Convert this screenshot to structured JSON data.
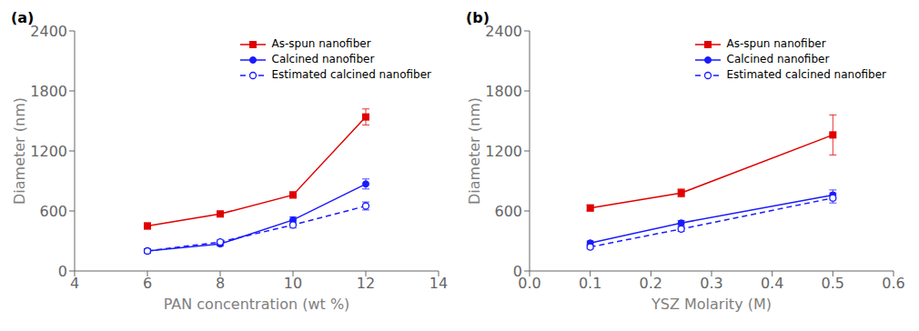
{
  "chart_data": [
    {
      "type": "line",
      "annotations": [
        "(a)"
      ],
      "xlabel": "PAN concentration (wt %)",
      "ylabel": "Diameter (nm)",
      "x": [
        6,
        8,
        10,
        12
      ],
      "xlim": [
        4,
        14
      ],
      "xticks": [
        4,
        6,
        8,
        10,
        12,
        14
      ],
      "ylim": [
        0,
        2400
      ],
      "yticks": [
        0,
        600,
        1200,
        1800,
        2400
      ],
      "legend": "upper right",
      "grid": false,
      "series": [
        {
          "name": "As-spun nanofiber",
          "color": "#e00000",
          "marker": "square",
          "line_style": "solid",
          "values": [
            450,
            570,
            760,
            1540
          ],
          "errors": [
            30,
            25,
            30,
            80
          ]
        },
        {
          "name": "Calcined nanofiber",
          "color": "#1a1aff",
          "marker": "circle",
          "line_style": "solid",
          "values": [
            200,
            270,
            510,
            870
          ],
          "errors": [
            20,
            20,
            30,
            50
          ]
        },
        {
          "name": "Estimated calcined nanofiber",
          "color": "#1a1aff",
          "marker": "open_circle",
          "line_style": "dashed",
          "values": [
            200,
            290,
            460,
            650
          ],
          "errors": [
            20,
            20,
            30,
            40
          ]
        }
      ]
    },
    {
      "type": "line",
      "annotations": [
        "(b)"
      ],
      "xlabel": "YSZ Molarity (M)",
      "ylabel": "Diameter (nm)",
      "x": [
        0.1,
        0.25,
        0.5
      ],
      "xlim": [
        0.0,
        0.6
      ],
      "xticks": [
        {
          "value": 0.0,
          "label": "0.0"
        },
        0.1,
        0.2,
        0.3,
        0.4,
        0.5,
        0.6
      ],
      "ylim": [
        0,
        2400
      ],
      "yticks": [
        0,
        600,
        1200,
        1800,
        2400
      ],
      "legend": "upper right",
      "grid": false,
      "series": [
        {
          "name": "As-spun nanofiber",
          "color": "#e00000",
          "marker": "square",
          "line_style": "solid",
          "values": [
            630,
            780,
            1360
          ],
          "errors": [
            30,
            40,
            200
          ]
        },
        {
          "name": "Calcined nanofiber",
          "color": "#1a1aff",
          "marker": "circle",
          "line_style": "solid",
          "values": [
            280,
            480,
            760
          ],
          "errors": [
            20,
            25,
            50
          ]
        },
        {
          "name": "Estimated calcined nanofiber",
          "color": "#1a1aff",
          "marker": "open_circle",
          "line_style": "dashed",
          "values": [
            240,
            420,
            730
          ],
          "errors": [
            20,
            25,
            50
          ]
        }
      ]
    }
  ]
}
